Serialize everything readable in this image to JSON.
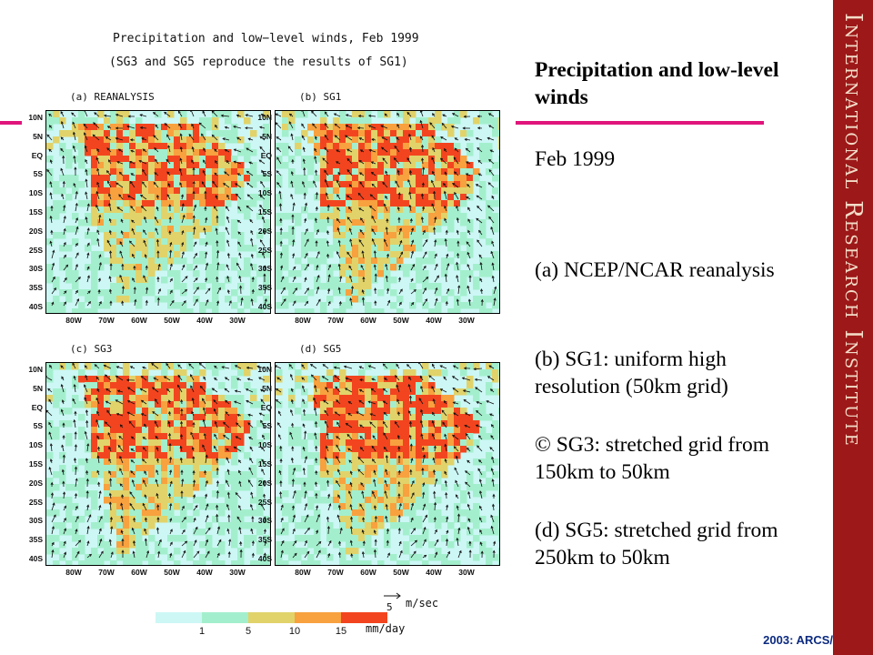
{
  "figure": {
    "title": "Precipitation and low−level winds, Feb 1999",
    "subtitle": "(SG3 and SG5 reproduce the results of SG1)",
    "panels": [
      {
        "id": "a",
        "label": "(a) REANALYSIS"
      },
      {
        "id": "b",
        "label": "(b) SG1"
      },
      {
        "id": "c",
        "label": "(c) SG3"
      },
      {
        "id": "d",
        "label": "(d) SG5"
      }
    ],
    "lat_labels": [
      "10N",
      "5N",
      "EQ",
      "5S",
      "10S",
      "15S",
      "20S",
      "25S",
      "30S",
      "35S",
      "40S"
    ],
    "lon_labels": [
      "80W",
      "70W",
      "60W",
      "50W",
      "40W",
      "30W"
    ],
    "vector_scale": {
      "value": "5",
      "unit": "m/sec"
    },
    "colorbar": {
      "ticks": [
        "1",
        "5",
        "10",
        "15"
      ],
      "unit": "mm/day",
      "colors": [
        "#ccf7f5",
        "#a3efcd",
        "#e1d36a",
        "#f8a13f",
        "#f2451f"
      ]
    }
  },
  "slide": {
    "heading": "Precipitation and low-level winds",
    "date": "Feb 1999",
    "items": [
      "(a) NCEP/NCAR reanalysis",
      "(b) SG1: uniform high resolution (50km grid)",
      "© SG3: stretched grid from 150km to 50km",
      "(d) SG5: stretched grid from 250km to 50km"
    ],
    "sidebar_title": "International Research Institute",
    "credit": "2003: ARCS/",
    "accent_color": "#e0157b",
    "sidebar_color": "#9d1818"
  }
}
